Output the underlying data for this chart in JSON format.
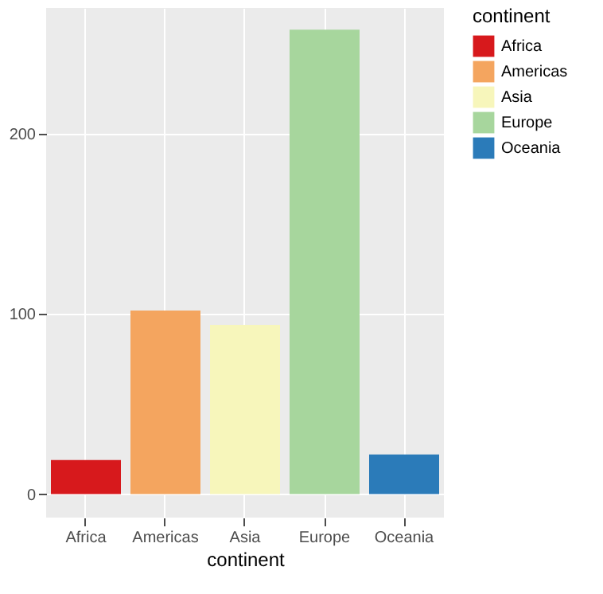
{
  "chart_data": {
    "type": "bar",
    "xlabel": "continent",
    "legend_title": "continent",
    "categories": [
      "Africa",
      "Americas",
      "Asia",
      "Europe",
      "Oceania"
    ],
    "series": [
      {
        "name": "Africa",
        "color": "#d7191c",
        "values": [
          19,
          null,
          null,
          null,
          null
        ]
      },
      {
        "name": "Americas",
        "color": "#f4a55f",
        "values": [
          null,
          102,
          null,
          null,
          null
        ]
      },
      {
        "name": "Asia",
        "color": "#f7f6bb",
        "values": [
          null,
          null,
          94,
          null,
          null
        ]
      },
      {
        "name": "Europe",
        "color": "#a7d69d",
        "values": [
          null,
          null,
          null,
          258,
          null
        ]
      },
      {
        "name": "Oceania",
        "color": "#2b7bb9",
        "values": [
          null,
          null,
          null,
          null,
          22
        ]
      }
    ],
    "ylim": [
      -13,
      270
    ],
    "yticks": [
      0,
      100,
      200
    ],
    "grid": true,
    "legend": "right"
  }
}
